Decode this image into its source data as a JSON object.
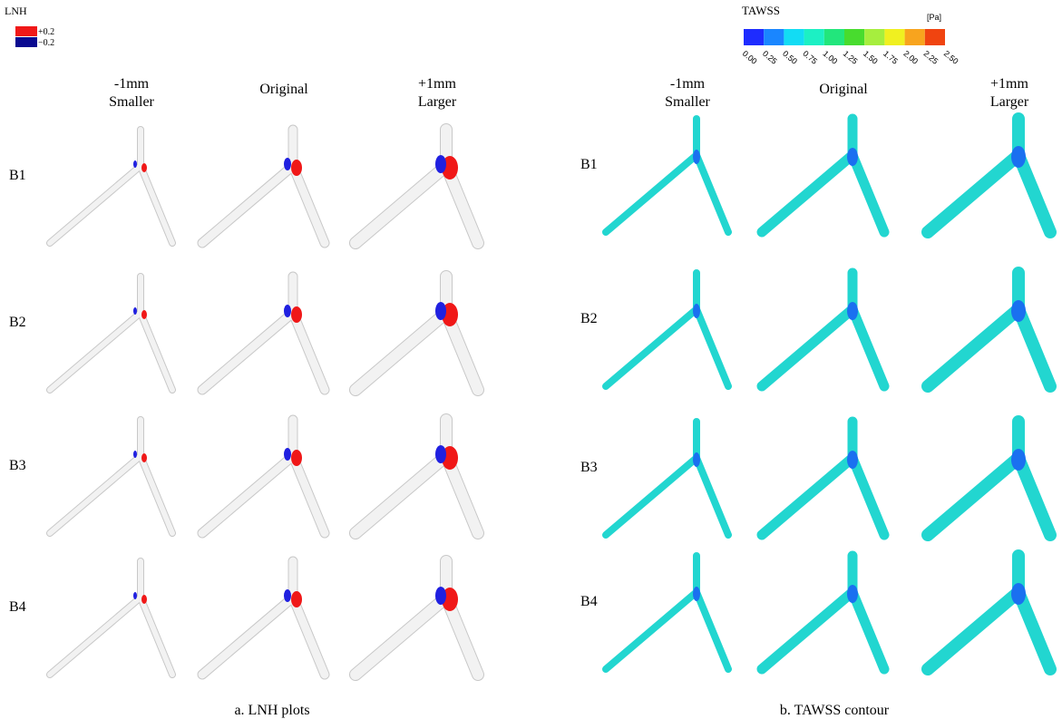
{
  "panel_a": {
    "legend": {
      "title": "LNH",
      "labels": [
        "+0.2",
        "−0.2"
      ]
    },
    "columns": [
      [
        "-1mm",
        "Smaller"
      ],
      [
        "Original"
      ],
      [
        "+1mm",
        "Larger"
      ]
    ],
    "rows": [
      "B1",
      "B2",
      "B3",
      "B4"
    ],
    "caption": "a. LNH plots"
  },
  "panel_b": {
    "legend": {
      "title": "TAWSS",
      "unit": "[Pa]",
      "ticks": [
        "0.00",
        "0.25",
        "0.50",
        "0.75",
        "1.00",
        "1.25",
        "1.50",
        "1.75",
        "2.00",
        "2.25",
        "2.50"
      ]
    },
    "columns": [
      [
        "-1mm",
        "Smaller"
      ],
      [
        "Original"
      ],
      [
        "+1mm",
        "Larger"
      ]
    ],
    "rows": [
      "B1",
      "B2",
      "B3",
      "B4"
    ],
    "caption": "b. TAWSS contour"
  }
}
